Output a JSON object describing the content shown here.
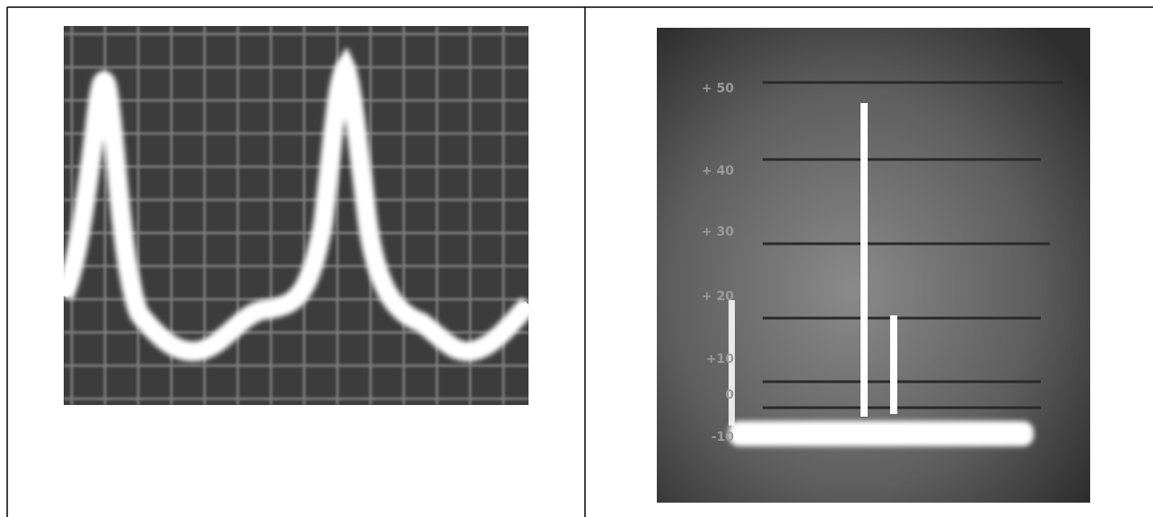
{
  "oscilloscope_photo": {
    "scale_labels": [
      "+ 50",
      "+ 40",
      "+ 30",
      "+ 20",
      "+10",
      "0",
      "-10"
    ]
  }
}
